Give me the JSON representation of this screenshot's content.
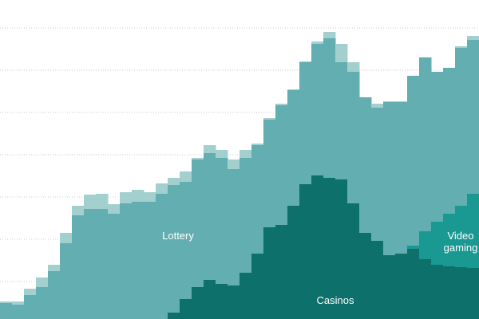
{
  "chart_data": {
    "type": "stacked-step-area",
    "ylim": [
      0,
      400
    ],
    "yticks": [
      47,
      100,
      153,
      206,
      259,
      312,
      365
    ],
    "grid": true,
    "series": [
      {
        "name": "Casinos",
        "color": "#0e706b",
        "values": [
          0,
          0,
          0,
          0,
          0,
          0,
          0,
          0,
          0,
          0,
          0,
          0,
          0,
          0,
          8,
          25,
          40,
          49,
          44,
          42,
          58,
          82,
          115,
          118,
          142,
          169,
          180,
          177,
          175,
          145,
          108,
          98,
          80,
          82,
          88,
          75,
          68,
          66,
          65,
          64
        ]
      },
      {
        "name": "Video gaming",
        "color": "#1a9892",
        "values": [
          0,
          0,
          0,
          0,
          0,
          0,
          0,
          0,
          0,
          0,
          0,
          0,
          0,
          0,
          0,
          0,
          0,
          0,
          0,
          0,
          0,
          0,
          0,
          0,
          0,
          0,
          0,
          0,
          0,
          0,
          0,
          0,
          0,
          0,
          4,
          35,
          54,
          66,
          77,
          93
        ]
      },
      {
        "name": "Lottery",
        "color": "#63aeb0",
        "values": [
          20,
          18,
          30,
          40,
          60,
          95,
          130,
          138,
          138,
          132,
          145,
          147,
          147,
          157,
          160,
          147,
          160,
          159,
          158,
          146,
          144,
          136,
          135,
          150,
          145,
          153,
          165,
          175,
          147,
          165,
          170,
          167,
          192,
          190,
          213,
          218,
          188,
          183,
          198,
          193
        ]
      },
      {
        "color": "#a3d0cf",
        "values": [
          2,
          4,
          8,
          12,
          8,
          13,
          12,
          18,
          19,
          12,
          14,
          15,
          12,
          13,
          9,
          13,
          2,
          10,
          10,
          12,
          10,
          2,
          2,
          2,
          1,
          1,
          3,
          8,
          23,
          12,
          0,
          5,
          1,
          1,
          0,
          0,
          0,
          0,
          2,
          5
        ]
      }
    ]
  }
}
